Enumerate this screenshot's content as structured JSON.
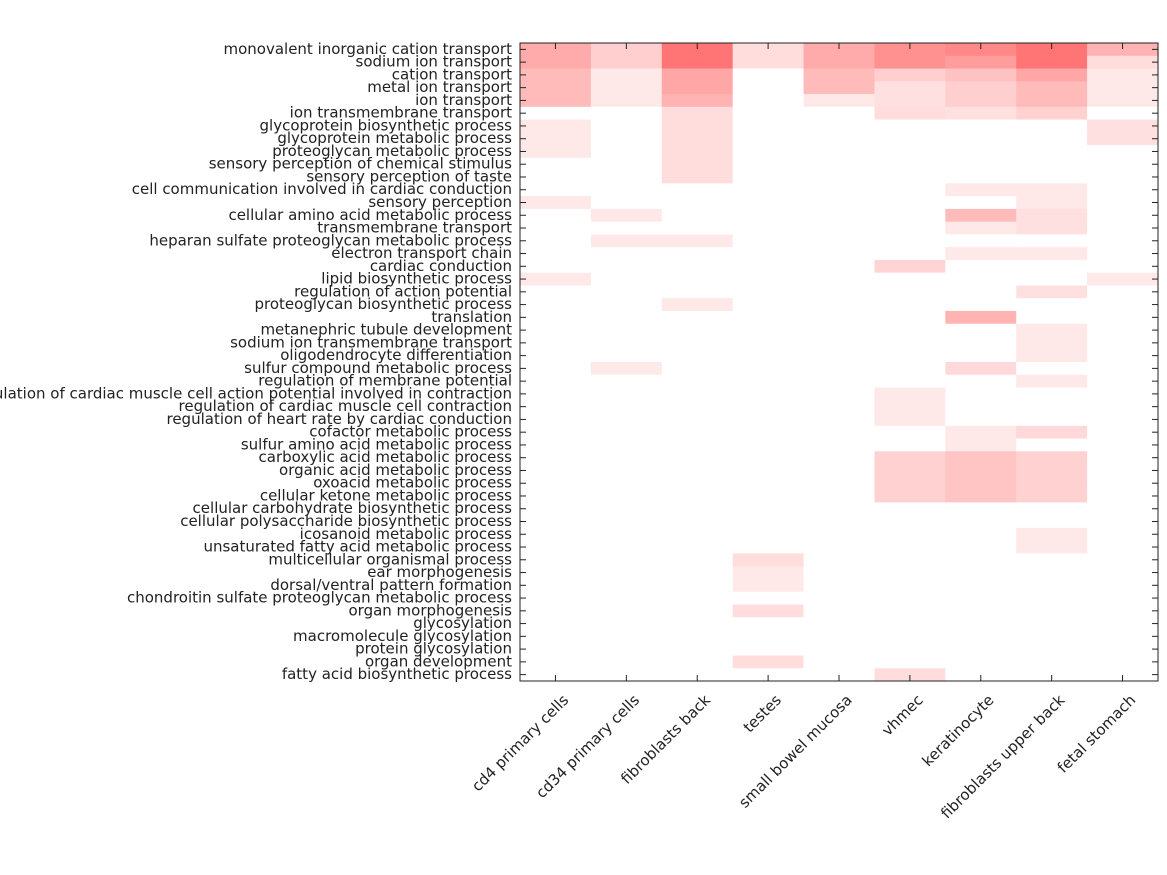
{
  "chart_data": {
    "type": "heatmap",
    "columns": [
      "cd4 primary cells",
      "cd34 primary cells",
      "fibroblasts back",
      "testes",
      "small bowel mucosa",
      "vhmec",
      "keratinocyte",
      "fibroblasts upper back",
      "fetal stomach"
    ],
    "rows": [
      "monovalent inorganic cation transport",
      "sodium ion transport",
      "cation transport",
      "metal ion transport",
      "ion transport",
      "ion transmembrane transport",
      "glycoprotein biosynthetic process",
      "glycoprotein metabolic process",
      "proteoglycan metabolic process",
      "sensory perception of chemical stimulus",
      "sensory perception of taste",
      "cell communication involved in cardiac conduction",
      "sensory perception",
      "cellular amino acid metabolic process",
      "transmembrane transport",
      "heparan sulfate proteoglycan metabolic process",
      "electron transport chain",
      "cardiac conduction",
      "lipid biosynthetic process",
      "regulation of action potential",
      "proteoglycan biosynthetic process",
      "translation",
      "metanephric tubule development",
      "sodium ion transmembrane transport",
      "oligodendrocyte differentiation",
      "sulfur compound metabolic process",
      "regulation of membrane potential",
      "regulation of cardiac muscle cell action potential involved in contraction",
      "regulation of cardiac muscle cell contraction",
      "regulation of heart rate by cardiac conduction",
      "cofactor metabolic process",
      "sulfur amino acid metabolic process",
      "carboxylic acid metabolic process",
      "organic acid metabolic process",
      "oxoacid metabolic process",
      "cellular ketone metabolic process",
      "cellular carbohydrate biosynthetic process",
      "cellular polysaccharide biosynthetic process",
      "icosanoid metabolic process",
      "unsaturated fatty acid metabolic process",
      "multicellular organismal process",
      "ear morphogenesis",
      "dorsal/ventral pattern formation",
      "chondroitin sulfate proteoglycan metabolic process",
      "organ morphogenesis",
      "glycosylation",
      "macromolecule glycosylation",
      "protein glycosylation",
      "organ development",
      "fatty acid biosynthetic process"
    ],
    "values": [
      [
        0.55,
        0.32,
        0.9,
        0.22,
        0.55,
        0.72,
        0.78,
        0.9,
        0.5
      ],
      [
        0.55,
        0.32,
        0.9,
        0.22,
        0.55,
        0.72,
        0.65,
        0.9,
        0.22
      ],
      [
        0.45,
        0.15,
        0.58,
        0,
        0.45,
        0.32,
        0.4,
        0.58,
        0.15
      ],
      [
        0.45,
        0.15,
        0.58,
        0,
        0.45,
        0.2,
        0.32,
        0.45,
        0.15
      ],
      [
        0.45,
        0.15,
        0.5,
        0,
        0.15,
        0.2,
        0.32,
        0.45,
        0.15
      ],
      [
        0,
        0,
        0.22,
        0,
        0,
        0.22,
        0.2,
        0.3,
        0
      ],
      [
        0.15,
        0,
        0.22,
        0,
        0,
        0,
        0,
        0,
        0.2
      ],
      [
        0.15,
        0,
        0.22,
        0,
        0,
        0,
        0,
        0,
        0.2
      ],
      [
        0.15,
        0,
        0.22,
        0,
        0,
        0,
        0,
        0,
        0
      ],
      [
        0,
        0,
        0.22,
        0,
        0,
        0,
        0,
        0,
        0
      ],
      [
        0,
        0,
        0.22,
        0,
        0,
        0,
        0,
        0,
        0
      ],
      [
        0,
        0,
        0,
        0,
        0,
        0,
        0.15,
        0.15,
        0
      ],
      [
        0.15,
        0,
        0,
        0,
        0,
        0,
        0,
        0.15,
        0
      ],
      [
        0,
        0.15,
        0,
        0,
        0,
        0,
        0.45,
        0.2,
        0
      ],
      [
        0,
        0,
        0,
        0,
        0,
        0,
        0.15,
        0.2,
        0
      ],
      [
        0,
        0.15,
        0.15,
        0,
        0,
        0,
        0,
        0,
        0
      ],
      [
        0,
        0,
        0,
        0,
        0,
        0,
        0.15,
        0.15,
        0
      ],
      [
        0,
        0,
        0,
        0,
        0,
        0.28,
        0,
        0,
        0
      ],
      [
        0.15,
        0,
        0,
        0,
        0,
        0,
        0,
        0,
        0.15
      ],
      [
        0,
        0,
        0,
        0,
        0,
        0,
        0,
        0.2,
        0
      ],
      [
        0,
        0,
        0.15,
        0,
        0,
        0,
        0,
        0,
        0
      ],
      [
        0,
        0,
        0,
        0,
        0,
        0,
        0.5,
        0,
        0
      ],
      [
        0,
        0,
        0,
        0,
        0,
        0,
        0,
        0.15,
        0
      ],
      [
        0,
        0,
        0,
        0,
        0,
        0,
        0,
        0.15,
        0
      ],
      [
        0,
        0,
        0,
        0,
        0,
        0,
        0,
        0.15,
        0
      ],
      [
        0,
        0.15,
        0,
        0,
        0,
        0,
        0.25,
        0,
        0
      ],
      [
        0,
        0,
        0,
        0,
        0,
        0,
        0,
        0.15,
        0
      ],
      [
        0,
        0,
        0,
        0,
        0,
        0.15,
        0,
        0,
        0
      ],
      [
        0,
        0,
        0,
        0,
        0,
        0.15,
        0,
        0,
        0
      ],
      [
        0,
        0,
        0,
        0,
        0,
        0.15,
        0,
        0,
        0
      ],
      [
        0,
        0,
        0,
        0,
        0,
        0,
        0.15,
        0.25,
        0
      ],
      [
        0,
        0,
        0,
        0,
        0,
        0,
        0.15,
        0,
        0
      ],
      [
        0,
        0,
        0,
        0,
        0,
        0.3,
        0.38,
        0.3,
        0
      ],
      [
        0,
        0,
        0,
        0,
        0,
        0.3,
        0.38,
        0.3,
        0
      ],
      [
        0,
        0,
        0,
        0,
        0,
        0.3,
        0.38,
        0.3,
        0
      ],
      [
        0,
        0,
        0,
        0,
        0,
        0.3,
        0.38,
        0.3,
        0
      ],
      [
        0,
        0,
        0,
        0,
        0,
        0,
        0,
        0,
        0
      ],
      [
        0,
        0,
        0,
        0,
        0,
        0,
        0,
        0,
        0
      ],
      [
        0,
        0,
        0,
        0,
        0,
        0,
        0,
        0.15,
        0
      ],
      [
        0,
        0,
        0,
        0,
        0,
        0,
        0,
        0.15,
        0
      ],
      [
        0,
        0,
        0,
        0.22,
        0,
        0,
        0,
        0,
        0
      ],
      [
        0,
        0,
        0,
        0.15,
        0,
        0,
        0,
        0,
        0
      ],
      [
        0,
        0,
        0,
        0.15,
        0,
        0,
        0,
        0,
        0
      ],
      [
        0,
        0,
        0,
        0,
        0,
        0,
        0,
        0,
        0
      ],
      [
        0,
        0,
        0,
        0.22,
        0,
        0,
        0,
        0,
        0
      ],
      [
        0,
        0,
        0,
        0,
        0,
        0,
        0,
        0,
        0
      ],
      [
        0,
        0,
        0,
        0,
        0,
        0,
        0,
        0,
        0
      ],
      [
        0,
        0,
        0,
        0,
        0,
        0,
        0,
        0,
        0
      ],
      [
        0,
        0,
        0,
        0.22,
        0,
        0,
        0,
        0,
        0
      ],
      [
        0,
        0,
        0,
        0,
        0,
        0.22,
        0,
        0,
        0
      ]
    ],
    "value_range": [
      0,
      1
    ],
    "color_low": "#ffffff",
    "color_high": "#ff6666",
    "grid": false,
    "legend": "none"
  }
}
